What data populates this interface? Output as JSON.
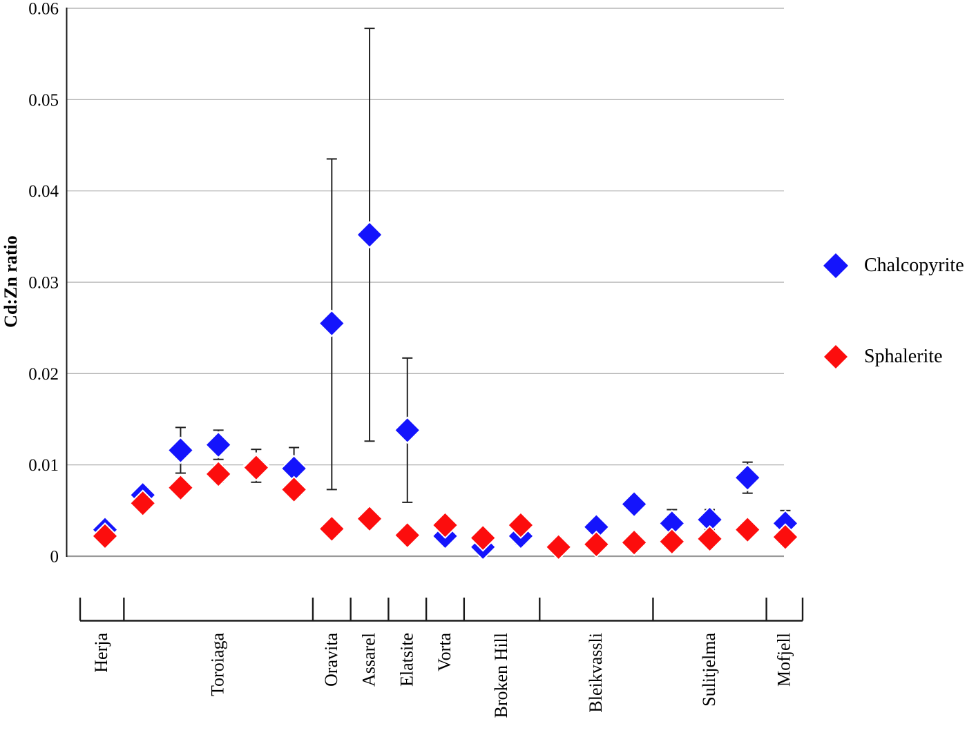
{
  "page": {
    "background": "#FFFFFF"
  },
  "chart_data": {
    "type": "scatter",
    "title": "",
    "xlabel": "",
    "ylabel": "Cd:Zn ratio",
    "ylim": [
      0,
      0.06
    ],
    "ytick_values": [
      0,
      0.01,
      0.02,
      0.03,
      0.04,
      0.05,
      0.06
    ],
    "ytick_labels": [
      "0",
      "0.01",
      "0.02",
      "0.03",
      "0.04",
      "0.05",
      "0.06"
    ],
    "grid": true,
    "legend_position": "right",
    "legend": [
      {
        "name": "Chalcopyrite",
        "color": "#1414FC",
        "marker": "diamond"
      },
      {
        "name": "Sphalerite",
        "color": "#FC0D0D",
        "marker": "diamond"
      }
    ],
    "colors": {
      "chalcopyrite": "#1414FC",
      "sphalerite": "#FC0D0D",
      "error_bar": "#212121",
      "gridline": "#A8A8A8",
      "baseline": "#999999",
      "axis": "#1A1A1A"
    },
    "groups": [
      {
        "label": "Herja",
        "points": [
          {
            "chalcopyrite": 0.0029,
            "chalcopyrite_err": null,
            "sphalerite": 0.0022,
            "sphalerite_err": null
          }
        ]
      },
      {
        "label": "Toroiaga",
        "points": [
          {
            "chalcopyrite": 0.0067,
            "chalcopyrite_err": null,
            "sphalerite": 0.0058,
            "sphalerite_err": null
          },
          {
            "chalcopyrite": 0.0116,
            "chalcopyrite_err": [
              0.0091,
              0.0141
            ],
            "sphalerite": 0.0075,
            "sphalerite_err": null
          },
          {
            "chalcopyrite": 0.0122,
            "chalcopyrite_err": [
              0.0106,
              0.0138
            ],
            "sphalerite": 0.009,
            "sphalerite_err": [
              0.0081,
              0.0099
            ]
          },
          {
            "chalcopyrite": 0.0099,
            "chalcopyrite_err": [
              0.0081,
              0.0117
            ],
            "sphalerite": 0.0097,
            "sphalerite_err": null
          },
          {
            "chalcopyrite": 0.0096,
            "chalcopyrite_err": [
              0.0073,
              0.0119
            ],
            "sphalerite": 0.0073,
            "sphalerite_err": null
          }
        ]
      },
      {
        "label": "Oravita",
        "points": [
          {
            "chalcopyrite": 0.0255,
            "chalcopyrite_err": [
              0.0073,
              0.0435
            ],
            "sphalerite": 0.003,
            "sphalerite_err": null
          }
        ]
      },
      {
        "label": "Assarel",
        "points": [
          {
            "chalcopyrite": 0.0352,
            "chalcopyrite_err": [
              0.0126,
              0.0578
            ],
            "sphalerite": 0.0041,
            "sphalerite_err": null
          }
        ]
      },
      {
        "label": "Elatsite",
        "points": [
          {
            "chalcopyrite": 0.0138,
            "chalcopyrite_err": [
              0.0059,
              0.0217
            ],
            "sphalerite": 0.0023,
            "sphalerite_err": null
          }
        ]
      },
      {
        "label": "Vorta",
        "points": [
          {
            "chalcopyrite": 0.0022,
            "chalcopyrite_err": null,
            "sphalerite": 0.0034,
            "sphalerite_err": null
          }
        ]
      },
      {
        "label": "Broken Hill",
        "points": [
          {
            "chalcopyrite": 0.001,
            "chalcopyrite_err": null,
            "sphalerite": 0.002,
            "sphalerite_err": null
          },
          {
            "chalcopyrite": 0.0022,
            "chalcopyrite_err": [
              0.0013,
              0.0031
            ],
            "sphalerite": 0.0034,
            "sphalerite_err": null
          }
        ]
      },
      {
        "label": "Bleikvassli",
        "points": [
          {
            "chalcopyrite": 0.0012,
            "chalcopyrite_err": null,
            "sphalerite": 0.001,
            "sphalerite_err": null
          },
          {
            "chalcopyrite": 0.0032,
            "chalcopyrite_err": [
              0.0024,
              0.004
            ],
            "sphalerite": 0.0013,
            "sphalerite_err": null
          },
          {
            "chalcopyrite": 0.0057,
            "chalcopyrite_err": null,
            "sphalerite": 0.0015,
            "sphalerite_err": null
          }
        ]
      },
      {
        "label": "Sulitjelma",
        "points": [
          {
            "chalcopyrite": 0.0036,
            "chalcopyrite_err": [
              0.0021,
              0.0051
            ],
            "sphalerite": 0.0016,
            "sphalerite_err": null
          },
          {
            "chalcopyrite": 0.004,
            "chalcopyrite_err": [
              0.0029,
              0.0051
            ],
            "sphalerite": 0.0019,
            "sphalerite_err": null
          },
          {
            "chalcopyrite": 0.0086,
            "chalcopyrite_err": [
              0.0069,
              0.0103
            ],
            "sphalerite": 0.0029,
            "sphalerite_err": null
          }
        ]
      },
      {
        "label": "Mofjell",
        "points": [
          {
            "chalcopyrite": 0.0036,
            "chalcopyrite_err": [
              0.0022,
              0.005
            ],
            "sphalerite": 0.0021,
            "sphalerite_err": null
          }
        ]
      }
    ]
  }
}
